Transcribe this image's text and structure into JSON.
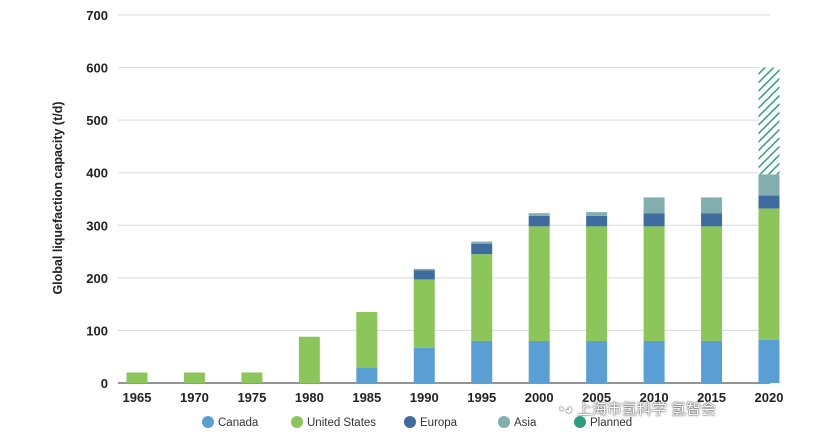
{
  "chart_data": {
    "type": "bar",
    "stacked": true,
    "categories": [
      "1965",
      "1970",
      "1975",
      "1980",
      "1985",
      "1990",
      "1995",
      "2000",
      "2005",
      "2010",
      "2015",
      "2020"
    ],
    "ylabel": "Global liquefaction capacity (t/d)",
    "xlabel": "",
    "ylim": [
      0,
      700
    ],
    "yticks": [
      0,
      100,
      200,
      300,
      400,
      500,
      600,
      700
    ],
    "grid": true,
    "legend_position": "bottom",
    "series": [
      {
        "name": "Canada",
        "color": "#5a9fd4",
        "values": [
          0,
          0,
          0,
          0,
          30,
          67,
          80,
          80,
          80,
          80,
          80,
          82
        ]
      },
      {
        "name": "United States",
        "color": "#8cc65a",
        "values": [
          20,
          20,
          20,
          88,
          105,
          130,
          165,
          218,
          218,
          218,
          218,
          250
        ]
      },
      {
        "name": "Europa",
        "color": "#3e6c9e",
        "values": [
          0,
          0,
          0,
          0,
          0,
          17,
          20,
          20,
          20,
          25,
          25,
          25
        ]
      },
      {
        "name": "Asia",
        "color": "#82aeae",
        "values": [
          0,
          0,
          0,
          0,
          0,
          3,
          4,
          5,
          7,
          30,
          30,
          40
        ]
      },
      {
        "name": "Planned",
        "color": "#2e9e83",
        "pattern": "hatched",
        "values": [
          0,
          0,
          0,
          0,
          0,
          0,
          0,
          0,
          0,
          0,
          0,
          203
        ]
      }
    ]
  },
  "watermark": {
    "text": "上海市氢科学",
    "text_end": "氢智会",
    "icon": "wechat-icon"
  }
}
